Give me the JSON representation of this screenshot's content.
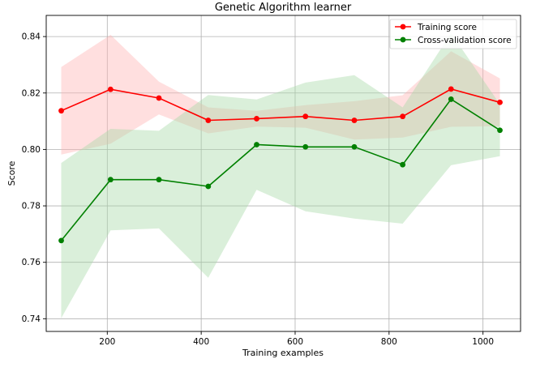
{
  "chart_data": {
    "type": "line",
    "title": "Genetic Algorithm learner",
    "xlabel": "Training examples",
    "ylabel": "Score",
    "xlim": [
      70,
      1080
    ],
    "ylim": [
      0.7355,
      0.8475
    ],
    "xticks": [
      200,
      400,
      600,
      800,
      1000
    ],
    "xtick_labels": [
      "200",
      "400",
      "600",
      "800",
      "1000"
    ],
    "yticks": [
      0.74,
      0.76,
      0.78,
      0.8,
      0.82,
      0.84
    ],
    "ytick_labels": [
      "0.74",
      "0.76",
      "0.78",
      "0.80",
      "0.82",
      "0.84"
    ],
    "grid": true,
    "legend_position": "top-right",
    "x": [
      102,
      207,
      310,
      415,
      518,
      622,
      726,
      829,
      932,
      1036
    ],
    "series": [
      {
        "name": "Training score",
        "color": "#ff0000",
        "band_color": "#ffb3b3",
        "values": [
          0.8137,
          0.8213,
          0.8182,
          0.8103,
          0.8109,
          0.8117,
          0.8103,
          0.8117,
          0.8214,
          0.8167
        ],
        "band_upper": [
          0.8292,
          0.8406,
          0.824,
          0.8149,
          0.8137,
          0.8157,
          0.8171,
          0.8192,
          0.8348,
          0.8252
        ],
        "band_lower": [
          0.7982,
          0.802,
          0.8124,
          0.8057,
          0.8081,
          0.8077,
          0.8035,
          0.8042,
          0.808,
          0.8082
        ]
      },
      {
        "name": "Cross-validation score",
        "color": "#008000",
        "band_color": "#a8d8a8",
        "values": [
          0.7677,
          0.7893,
          0.7893,
          0.7869,
          0.8017,
          0.8009,
          0.8009,
          0.7946,
          0.8178,
          0.8068
        ],
        "band_upper": [
          0.7952,
          0.8073,
          0.8066,
          0.8193,
          0.8177,
          0.8237,
          0.8263,
          0.8149,
          0.8412,
          0.816
        ],
        "band_lower": [
          0.7402,
          0.7713,
          0.772,
          0.7545,
          0.7857,
          0.7781,
          0.7755,
          0.7737,
          0.7944,
          0.7976
        ]
      }
    ]
  }
}
